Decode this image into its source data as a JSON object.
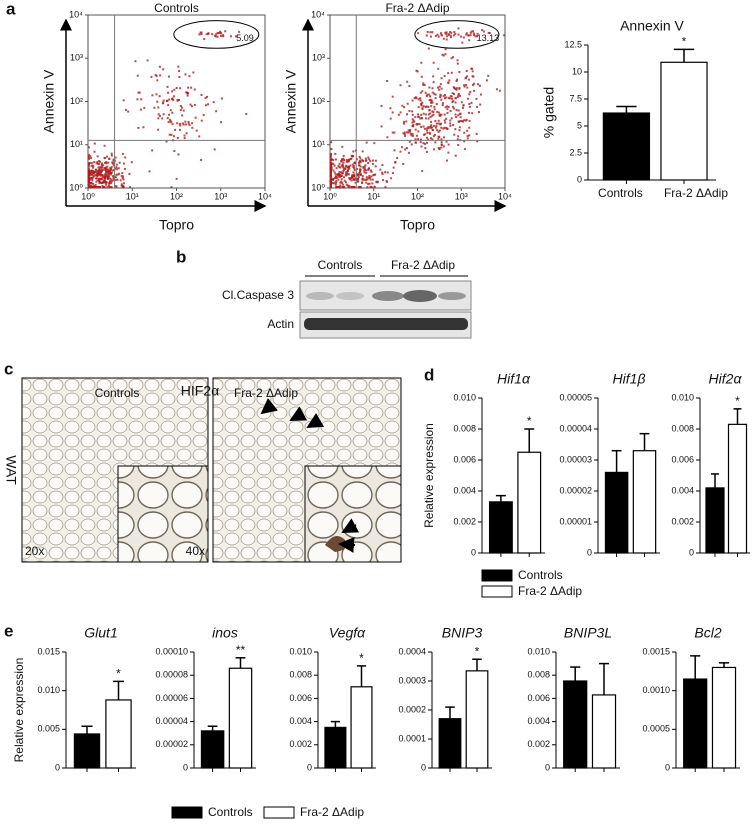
{
  "panel_labels": [
    "a",
    "b",
    "c",
    "d",
    "e"
  ],
  "blot": {
    "groups": [
      "Controls",
      "Fra-2 ΔAdip"
    ],
    "rows": [
      "Cl.Caspase 3",
      "Actin"
    ]
  },
  "histology": {
    "stain": "HIF2α",
    "groups": [
      "Controls",
      "Fra-2 ΔAdip"
    ],
    "tissue": "WAT",
    "magnifications": [
      "20x",
      "40x"
    ]
  },
  "legends": [
    [
      "Controls",
      "Fra-2 ΔAdip"
    ],
    [
      "Controls",
      "Fra-2 ΔAdip"
    ]
  ],
  "chart_data": [
    {
      "type": "flow",
      "title": "Controls",
      "xlabel": "Topro",
      "ylabel": "Annexin V",
      "gate_value": 5.09,
      "log": true,
      "color": "#b01c1c",
      "xlim": [
        1,
        10000
      ],
      "ylim": [
        1,
        10000
      ],
      "xticks": [
        {
          "value": 1,
          "label": "10⁰"
        },
        {
          "value": 10,
          "label": "10¹"
        },
        {
          "value": 100,
          "label": "10²"
        },
        {
          "value": 1000,
          "label": "10³"
        },
        {
          "value": 10000,
          "label": "10⁴"
        }
      ],
      "yticks": [
        {
          "value": 1,
          "label": "10⁰"
        },
        {
          "value": 10,
          "label": "10¹"
        },
        {
          "value": 100,
          "label": "10²"
        },
        {
          "value": 1000,
          "label": "10³"
        },
        {
          "value": 10000,
          "label": "10⁴"
        }
      ]
    },
    {
      "type": "flow",
      "title": "Fra-2 ΔAdip",
      "xlabel": "Topro",
      "ylabel": "Annexin V",
      "gate_value": 13.13,
      "log": true,
      "color": "#b01c1c",
      "xlim": [
        1,
        10000
      ],
      "ylim": [
        1,
        10000
      ],
      "xticks": [
        {
          "value": 1,
          "label": "10⁰"
        },
        {
          "value": 10,
          "label": "10¹"
        },
        {
          "value": 100,
          "label": "10²"
        },
        {
          "value": 1000,
          "label": "10³"
        },
        {
          "value": 10000,
          "label": "10⁴"
        }
      ],
      "yticks": [
        {
          "value": 1,
          "label": "10⁰"
        },
        {
          "value": 10,
          "label": "10¹"
        },
        {
          "value": 100,
          "label": "10²"
        },
        {
          "value": 1000,
          "label": "10³"
        },
        {
          "value": 10000,
          "label": "10⁴"
        }
      ]
    },
    {
      "type": "bar",
      "title": "Annexin V",
      "ylabel": "% gated",
      "categories": [
        "Controls",
        "Fra-2 ΔAdip"
      ],
      "values": [
        6.2,
        10.9
      ],
      "errors": [
        0.6,
        1.2
      ],
      "annotations": [
        null,
        "*"
      ],
      "colors": [
        "#000000",
        "#ffffff"
      ],
      "ylim": [
        0,
        12.5
      ],
      "yticks": [
        0,
        2.5,
        5,
        7.5,
        10,
        12.5
      ]
    },
    {
      "type": "bar",
      "title": "Hif1α",
      "ylabel": "Relative expression",
      "categories": [
        null,
        null
      ],
      "values": [
        0.0033,
        0.0065
      ],
      "errors": [
        0.0004,
        0.0015
      ],
      "annotations": [
        null,
        "*"
      ],
      "colors": [
        "#000000",
        "#ffffff"
      ],
      "ylim": [
        0,
        0.01
      ],
      "yticks": [
        0,
        0.002,
        0.004,
        0.006,
        0.008,
        {
          "value": 0.01,
          "label": "0.010"
        }
      ]
    },
    {
      "type": "bar",
      "title": "Hif1β",
      "categories": [
        null,
        null
      ],
      "values": [
        2.6e-05,
        3.3e-05
      ],
      "errors": [
        7e-06,
        5.5e-06
      ],
      "annotations": [
        null,
        null
      ],
      "colors": [
        "#000000",
        "#ffffff"
      ],
      "ylim": [
        0,
        5e-05
      ],
      "yticks": [
        0,
        1e-05,
        2e-05,
        3e-05,
        4e-05,
        5e-05
      ]
    },
    {
      "type": "bar",
      "title": "Hif2α",
      "categories": [
        null,
        null
      ],
      "values": [
        0.0042,
        0.0083
      ],
      "errors": [
        0.0009,
        0.001
      ],
      "annotations": [
        null,
        "*"
      ],
      "colors": [
        "#000000",
        "#ffffff"
      ],
      "ylim": [
        0,
        0.01
      ],
      "yticks": [
        0,
        0.002,
        0.004,
        0.006,
        0.008,
        {
          "value": 0.01,
          "label": "0.010"
        }
      ]
    },
    {
      "type": "bar",
      "title": "Glut1",
      "ylabel": "Relative expression",
      "categories": [
        null,
        null
      ],
      "values": [
        0.0044,
        0.0088
      ],
      "errors": [
        0.001,
        0.0024
      ],
      "annotations": [
        null,
        "*"
      ],
      "colors": [
        "#000000",
        "#ffffff"
      ],
      "ylim": [
        0,
        0.015
      ],
      "yticks": [
        0,
        0.005,
        {
          "value": 0.01,
          "label": "0.010"
        },
        0.015
      ]
    },
    {
      "type": "bar",
      "title": "inos",
      "categories": [
        null,
        null
      ],
      "values": [
        3.2e-05,
        8.6e-05
      ],
      "errors": [
        4e-06,
        9e-06
      ],
      "annotations": [
        null,
        "**"
      ],
      "colors": [
        "#000000",
        "#ffffff"
      ],
      "ylim": [
        0,
        0.0001
      ],
      "yticks": [
        0,
        2e-05,
        4e-05,
        6e-05,
        8e-05,
        {
          "value": 0.0001,
          "label": "0.00010"
        }
      ]
    },
    {
      "type": "bar",
      "title": "Vegfα",
      "categories": [
        null,
        null
      ],
      "values": [
        0.0035,
        0.007
      ],
      "errors": [
        0.0005,
        0.0018
      ],
      "annotations": [
        null,
        "*"
      ],
      "colors": [
        "#000000",
        "#ffffff"
      ],
      "ylim": [
        0,
        0.01
      ],
      "yticks": [
        0,
        0.002,
        0.004,
        0.006,
        0.008,
        {
          "value": 0.01,
          "label": "0.010"
        }
      ]
    },
    {
      "type": "bar",
      "title": "BNIP3",
      "categories": [
        null,
        null
      ],
      "values": [
        0.00017,
        0.000335
      ],
      "errors": [
        4e-05,
        4e-05
      ],
      "annotations": [
        null,
        "*"
      ],
      "colors": [
        "#000000",
        "#ffffff"
      ],
      "ylim": [
        0,
        0.0004
      ],
      "yticks": [
        0,
        0.0001,
        0.0002,
        0.0003,
        0.0004
      ]
    },
    {
      "type": "bar",
      "title": "BNIP3L",
      "categories": [
        null,
        null
      ],
      "values": [
        0.0075,
        0.0063
      ],
      "errors": [
        0.0012,
        0.0027
      ],
      "annotations": [
        null,
        null
      ],
      "colors": [
        "#000000",
        "#ffffff"
      ],
      "ylim": [
        0,
        0.01
      ],
      "yticks": [
        0,
        0.002,
        0.004,
        0.006,
        0.008,
        {
          "value": 0.01,
          "label": "0.010"
        }
      ]
    },
    {
      "type": "bar",
      "title": "Bcl2",
      "categories": [
        null,
        null
      ],
      "values": [
        0.00115,
        0.0013
      ],
      "errors": [
        0.0003,
        6e-05
      ],
      "annotations": [
        null,
        null
      ],
      "colors": [
        "#000000",
        "#ffffff"
      ],
      "ylim": [
        0,
        0.0015
      ],
      "yticks": [
        0,
        0.0005,
        {
          "value": 0.001,
          "label": "0.0010"
        },
        0.0015
      ]
    }
  ]
}
